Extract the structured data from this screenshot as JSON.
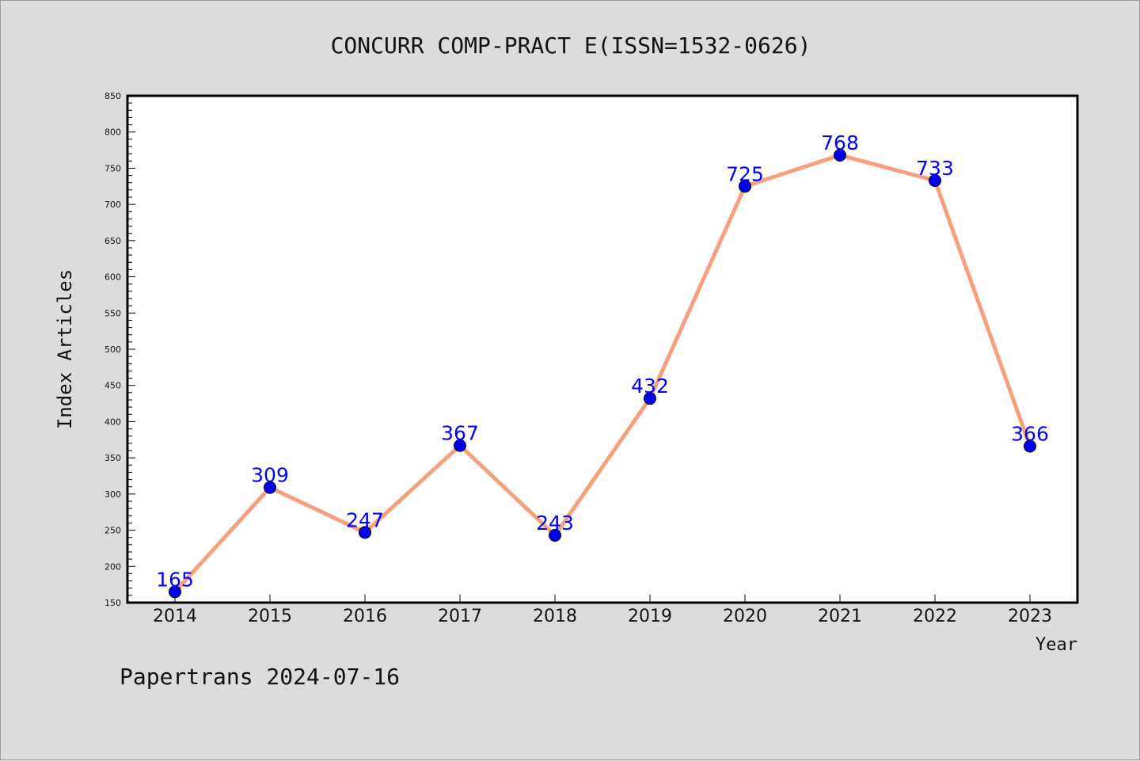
{
  "chart_data": {
    "type": "line",
    "title": "CONCURR COMP-PRACT E(ISSN=1532-0626)",
    "xlabel": "Year",
    "ylabel": "Index Articles",
    "categories": [
      "2014",
      "2015",
      "2016",
      "2017",
      "2018",
      "2019",
      "2020",
      "2021",
      "2022",
      "2023"
    ],
    "series": [
      {
        "values": [
          165,
          309,
          247,
          367,
          243,
          432,
          725,
          768,
          733,
          366
        ]
      }
    ],
    "ylim": [
      150,
      850
    ],
    "yticks": [
      150,
      200,
      250,
      300,
      350,
      400,
      450,
      500,
      550,
      600,
      650,
      700,
      750,
      800,
      850
    ],
    "data_labels": true,
    "grid": false,
    "legend": "none"
  },
  "footer": "Papertrans 2024-07-16",
  "colors": {
    "background": "#dcdcdc",
    "plot_background": "#ffffff",
    "line": "#f6a07e",
    "marker": "#0000ee",
    "data_label": "#0000ff"
  }
}
